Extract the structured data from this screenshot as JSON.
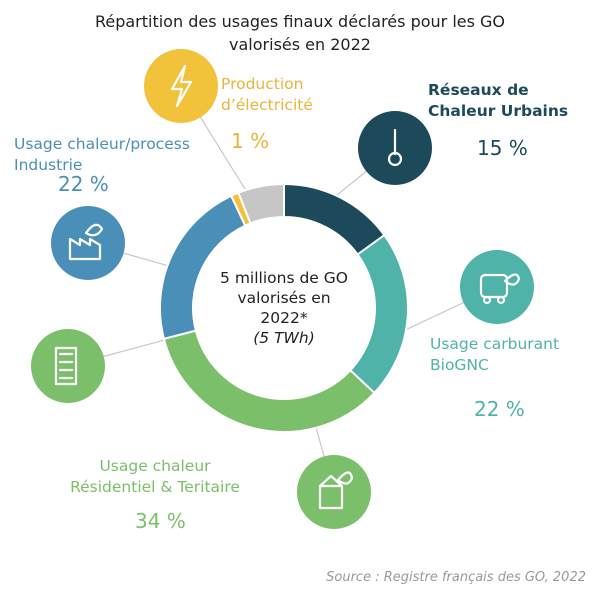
{
  "title_line1": "Répartition des usages finaux déclarés pour les GO",
  "title_line2": "valorisés en 2022",
  "center": {
    "line1": "5 millions de GO",
    "line2": "valorisés en",
    "line3": "2022*",
    "line4": "(5 TWh)"
  },
  "source": "Source : Registre français des GO, 2022",
  "chart_data": {
    "type": "pie",
    "donut": true,
    "categories": [
      "Réseaux de Chaleur Urbains",
      "Usage carburant BioGNC",
      "Usage chaleur Résidentiel & Teritaire",
      "Usage chaleur/process Industrie",
      "Production d’électricité",
      ""
    ],
    "values": [
      15,
      22,
      34,
      22,
      1,
      6
    ],
    "colors": [
      "#1d4a5a",
      "#4fb3a9",
      "#7cbf6a",
      "#4a8fb8",
      "#f2c23a",
      "#c6c6c6"
    ],
    "icons": [
      "thermometer-icon",
      "truck-leaf-icon",
      "building-leaf-icon",
      "factory-leaf-icon",
      "lightning-icon",
      ""
    ],
    "labels": [
      {
        "l1": "Réseaux de",
        "l2": "Chaleur Urbains",
        "pct": "15 %"
      },
      {
        "l1": "Usage carburant",
        "l2": "BioGNC",
        "pct": "22 %"
      },
      {
        "l1": "Usage chaleur",
        "l2": "Résidentiel & Teritaire",
        "pct": "34 %"
      },
      {
        "l1": "Usage chaleur/process",
        "l2": "Industrie",
        "pct": "22 %"
      },
      {
        "l1": "Production",
        "l2": "d’électricité",
        "pct": "1 %"
      }
    ]
  }
}
